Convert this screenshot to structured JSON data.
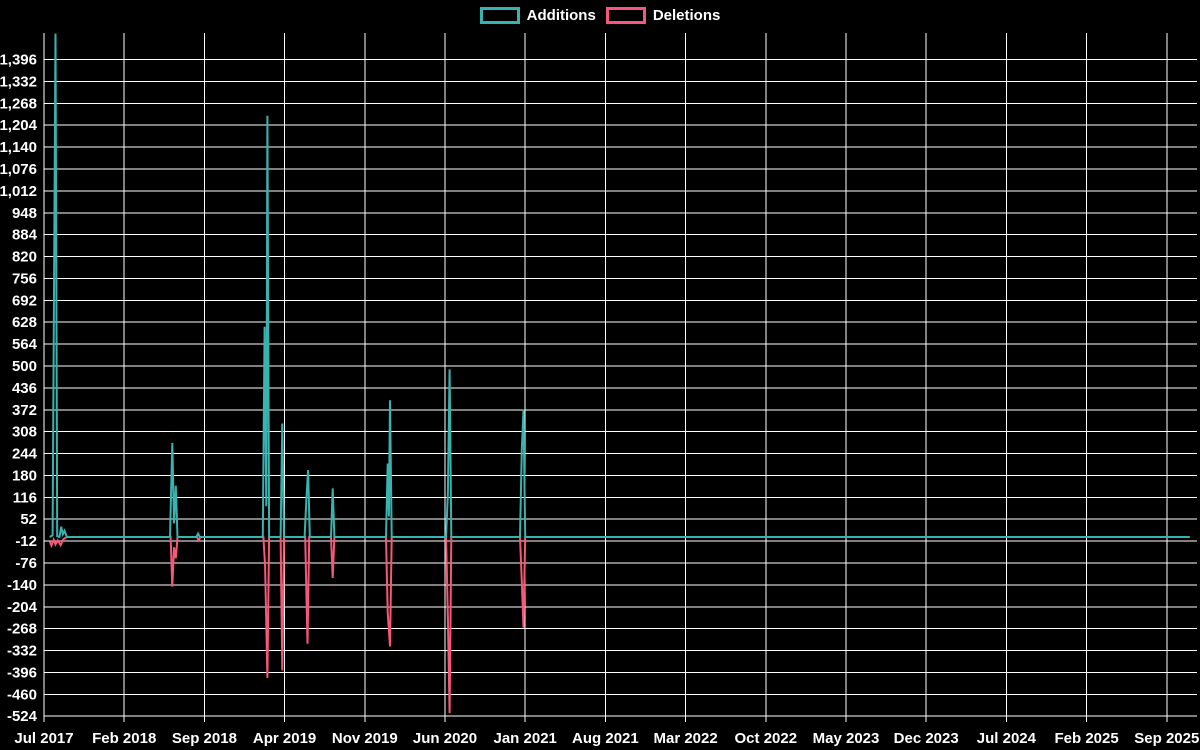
{
  "page": {
    "background_color": "#000000",
    "text_color": "#ffffff",
    "grid_color": "#ffffff"
  },
  "legend": {
    "items": [
      {
        "label": "Additions",
        "color": "#39b3b0"
      },
      {
        "label": "Deletions",
        "color": "#f75879"
      }
    ]
  },
  "chart_data": {
    "type": "line",
    "title": "",
    "subtitle": "",
    "legend_position": "top-center",
    "grid": true,
    "background": "#000000",
    "x_axis": {
      "unit": "months since Jul 2017",
      "tick_interval_months": 7,
      "tick_labels": [
        "Jul 2017",
        "Feb 2018",
        "Sep 2018",
        "Apr 2019",
        "Nov 2019",
        "Jun 2020",
        "Jan 2021",
        "Aug 2021",
        "Mar 2022",
        "Oct 2022",
        "May 2023",
        "Dec 2023",
        "Jul 2024",
        "Feb 2025",
        "Sep 2025"
      ]
    },
    "y_axis": {
      "step": 64,
      "min": -524,
      "max_tick": 1396,
      "top_visible_value": 1472,
      "ticks": [
        1396,
        1332,
        1268,
        1204,
        1140,
        1076,
        1012,
        948,
        884,
        820,
        756,
        692,
        628,
        564,
        500,
        436,
        372,
        308,
        244,
        180,
        116,
        52,
        -12,
        -76,
        -140,
        -204,
        -268,
        -332,
        -396,
        -460,
        -524
      ],
      "tick_labels": [
        "1,396",
        "1,332",
        "1,268",
        "1,204",
        "1,140",
        "1,076",
        "1,012",
        "948",
        "884",
        "820",
        "756",
        "692",
        "628",
        "564",
        "500",
        "436",
        "372",
        "308",
        "244",
        "180",
        "116",
        "52",
        "-12",
        "-76",
        "-140",
        "-204",
        "-268",
        "-332",
        "-396",
        "-460",
        "-524"
      ],
      "zero_line": 0
    },
    "series": [
      {
        "name": "Additions",
        "color": "#39b3b0",
        "points": [
          [
            0.5,
            0
          ],
          [
            0.75,
            5
          ],
          [
            1.0,
            1472
          ],
          [
            1.15,
            2
          ],
          [
            1.35,
            0
          ],
          [
            1.5,
            30
          ],
          [
            1.65,
            8
          ],
          [
            1.8,
            18
          ],
          [
            2.0,
            0
          ],
          [
            11.0,
            0
          ],
          [
            11.2,
            275
          ],
          [
            11.35,
            40
          ],
          [
            11.5,
            150
          ],
          [
            11.65,
            0
          ],
          [
            13.3,
            0
          ],
          [
            13.45,
            10
          ],
          [
            13.6,
            0
          ],
          [
            19.1,
            0
          ],
          [
            19.25,
            615
          ],
          [
            19.4,
            90
          ],
          [
            19.5,
            1232
          ],
          [
            19.65,
            0
          ],
          [
            20.65,
            0
          ],
          [
            20.8,
            332
          ],
          [
            20.95,
            0
          ],
          [
            22.75,
            0
          ],
          [
            22.9,
            112
          ],
          [
            23.05,
            196
          ],
          [
            23.2,
            0
          ],
          [
            25.05,
            0
          ],
          [
            25.2,
            142
          ],
          [
            25.35,
            0
          ],
          [
            29.85,
            0
          ],
          [
            30.0,
            215
          ],
          [
            30.1,
            60
          ],
          [
            30.2,
            400
          ],
          [
            30.35,
            0
          ],
          [
            35.1,
            0
          ],
          [
            35.25,
            130
          ],
          [
            35.4,
            490
          ],
          [
            35.55,
            0
          ],
          [
            41.55,
            0
          ],
          [
            41.7,
            255
          ],
          [
            41.85,
            372
          ],
          [
            42.0,
            0
          ],
          [
            100.0,
            0
          ]
        ]
      },
      {
        "name": "Deletions",
        "color": "#f75879",
        "points": [
          [
            0.5,
            -12
          ],
          [
            0.65,
            -25
          ],
          [
            0.85,
            -8
          ],
          [
            1.0,
            -22
          ],
          [
            1.2,
            -10
          ],
          [
            1.45,
            -24
          ],
          [
            1.7,
            -6
          ],
          [
            2.0,
            0
          ],
          [
            11.05,
            0
          ],
          [
            11.2,
            -145
          ],
          [
            11.35,
            -30
          ],
          [
            11.5,
            -62
          ],
          [
            11.65,
            0
          ],
          [
            13.35,
            0
          ],
          [
            13.5,
            -10
          ],
          [
            13.65,
            0
          ],
          [
            19.15,
            0
          ],
          [
            19.3,
            -85
          ],
          [
            19.5,
            -412
          ],
          [
            19.65,
            0
          ],
          [
            20.65,
            0
          ],
          [
            20.8,
            -390
          ],
          [
            20.95,
            0
          ],
          [
            22.8,
            0
          ],
          [
            23.0,
            -312
          ],
          [
            23.15,
            0
          ],
          [
            25.05,
            0
          ],
          [
            25.2,
            -120
          ],
          [
            25.35,
            0
          ],
          [
            29.85,
            0
          ],
          [
            30.0,
            -220
          ],
          [
            30.2,
            -320
          ],
          [
            30.35,
            0
          ],
          [
            35.1,
            0
          ],
          [
            35.25,
            -240
          ],
          [
            35.4,
            -515
          ],
          [
            35.55,
            0
          ],
          [
            41.55,
            0
          ],
          [
            41.7,
            -130
          ],
          [
            41.85,
            -265
          ],
          [
            42.0,
            0
          ],
          [
            100.0,
            0
          ]
        ]
      }
    ]
  }
}
